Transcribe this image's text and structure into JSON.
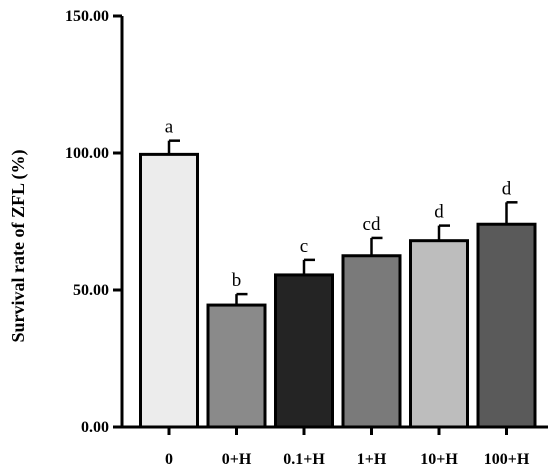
{
  "chart_data": {
    "type": "bar",
    "ylabel": "Survival rate of ZFL (%)",
    "xlabel": "",
    "ylim": [
      0,
      150
    ],
    "yticks": [
      "0.00",
      "50.00",
      "100.00",
      "150.00"
    ],
    "categories": [
      "0",
      "0+H",
      "0.1+H",
      "1+H",
      "10+H",
      "100+H"
    ],
    "values": [
      99.5,
      44.5,
      55.5,
      62.5,
      68.0,
      74.0
    ],
    "errors": [
      5.0,
      4.0,
      5.5,
      6.5,
      5.5,
      8.0
    ],
    "significance": [
      "a",
      "b",
      "c",
      "cd",
      "d",
      "d"
    ],
    "colors": [
      "#ececec",
      "#8a8a8a",
      "#242424",
      "#7a7a7a",
      "#bdbdbd",
      "#5a5a5a"
    ],
    "legend": false,
    "grid": false
  }
}
